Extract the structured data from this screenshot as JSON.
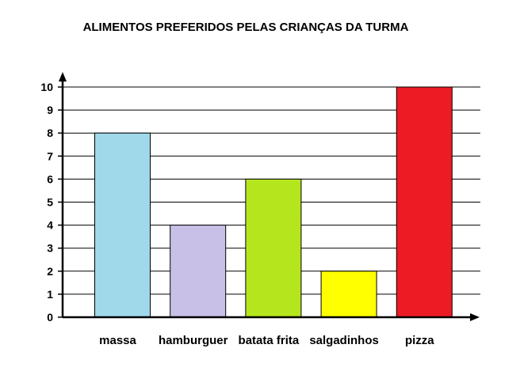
{
  "chart_data": {
    "type": "bar",
    "title": "ALIMENTOS PREFERIDOS PELAS CRIANÇAS DA TURMA",
    "xlabel": "",
    "ylabel": "",
    "categories": [
      "massa",
      "hamburguer",
      "batata frita",
      "salgadinhos",
      "pizza"
    ],
    "values": [
      8,
      4,
      6,
      2,
      10
    ],
    "colors": [
      "#9fd9ea",
      "#c8c0e6",
      "#b5e61d",
      "#ffff00",
      "#ed1c24"
    ],
    "ylim": [
      0,
      10
    ],
    "yticks": [
      "0",
      "1",
      "2",
      "3",
      "4",
      "5",
      "6",
      "7",
      "8",
      "9",
      "10"
    ],
    "grid": true,
    "legend": "none"
  }
}
